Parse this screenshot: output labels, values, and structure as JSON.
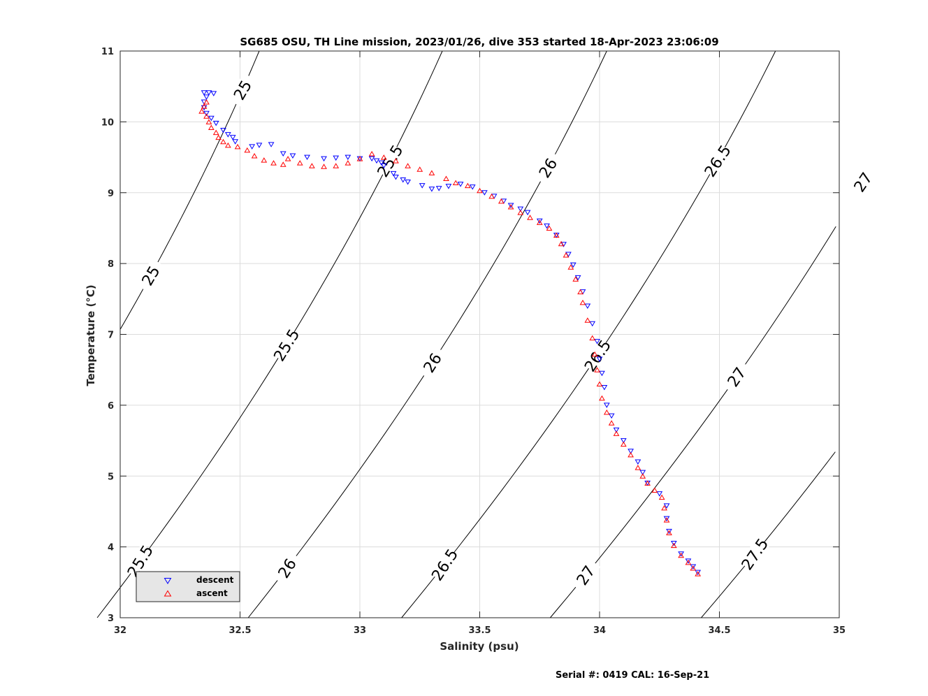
{
  "chart_data": {
    "type": "scatter",
    "title": "SG685 OSU, TH Line mission, 2023/01/26, dive 353 started 18-Apr-2023 23:06:09",
    "xlabel": "Salinity (psu)",
    "ylabel": "Temperature (°C)",
    "xlim": [
      32,
      35
    ],
    "ylim": [
      3,
      11
    ],
    "xticks": [
      "32",
      "32.5",
      "33",
      "33.5",
      "34",
      "34.5",
      "35"
    ],
    "yticks": [
      "3",
      "4",
      "5",
      "6",
      "7",
      "8",
      "9",
      "10",
      "11"
    ],
    "grid": true,
    "legend_position": "bottom-left",
    "series": [
      {
        "name": "descent",
        "color": "#0000ff",
        "marker": "triangle-down",
        "points": [
          [
            32.35,
            10.41
          ],
          [
            32.37,
            10.41
          ],
          [
            32.39,
            10.4
          ],
          [
            32.36,
            10.35
          ],
          [
            32.35,
            10.28
          ],
          [
            32.35,
            10.2
          ],
          [
            32.36,
            10.12
          ],
          [
            32.38,
            10.05
          ],
          [
            32.4,
            9.98
          ],
          [
            32.43,
            9.88
          ],
          [
            32.45,
            9.82
          ],
          [
            32.47,
            9.78
          ],
          [
            32.48,
            9.72
          ],
          [
            32.55,
            9.65
          ],
          [
            32.58,
            9.67
          ],
          [
            32.63,
            9.68
          ],
          [
            32.68,
            9.55
          ],
          [
            32.72,
            9.52
          ],
          [
            32.78,
            9.5
          ],
          [
            32.85,
            9.48
          ],
          [
            32.9,
            9.49
          ],
          [
            32.95,
            9.5
          ],
          [
            33.0,
            9.48
          ],
          [
            33.05,
            9.48
          ],
          [
            33.07,
            9.45
          ],
          [
            33.09,
            9.42
          ],
          [
            33.1,
            9.38
          ],
          [
            33.14,
            9.27
          ],
          [
            33.15,
            9.22
          ],
          [
            33.18,
            9.18
          ],
          [
            33.2,
            9.15
          ],
          [
            33.26,
            9.1
          ],
          [
            33.3,
            9.05
          ],
          [
            33.33,
            9.06
          ],
          [
            33.37,
            9.09
          ],
          [
            33.42,
            9.12
          ],
          [
            33.47,
            9.08
          ],
          [
            33.52,
            9.0
          ],
          [
            33.56,
            8.95
          ],
          [
            33.6,
            8.88
          ],
          [
            33.63,
            8.82
          ],
          [
            33.67,
            8.77
          ],
          [
            33.7,
            8.72
          ],
          [
            33.75,
            8.6
          ],
          [
            33.78,
            8.53
          ],
          [
            33.82,
            8.4
          ],
          [
            33.85,
            8.27
          ],
          [
            33.87,
            8.13
          ],
          [
            33.89,
            7.98
          ],
          [
            33.91,
            7.8
          ],
          [
            33.93,
            7.6
          ],
          [
            33.95,
            7.4
          ],
          [
            33.97,
            7.15
          ],
          [
            33.99,
            6.9
          ],
          [
            34.0,
            6.65
          ],
          [
            34.01,
            6.45
          ],
          [
            34.02,
            6.25
          ],
          [
            34.03,
            6.0
          ],
          [
            34.05,
            5.85
          ],
          [
            34.07,
            5.65
          ],
          [
            34.1,
            5.5
          ],
          [
            34.13,
            5.35
          ],
          [
            34.16,
            5.2
          ],
          [
            34.18,
            5.05
          ],
          [
            34.2,
            4.9
          ],
          [
            34.25,
            4.75
          ],
          [
            34.28,
            4.58
          ],
          [
            34.28,
            4.4
          ],
          [
            34.29,
            4.22
          ],
          [
            34.31,
            4.05
          ],
          [
            34.34,
            3.9
          ],
          [
            34.37,
            3.8
          ],
          [
            34.39,
            3.72
          ],
          [
            34.41,
            3.64
          ]
        ]
      },
      {
        "name": "ascent",
        "color": "#ff0000",
        "marker": "triangle-up",
        "points": [
          [
            32.35,
            10.22
          ],
          [
            32.36,
            10.28
          ],
          [
            32.34,
            10.15
          ],
          [
            32.36,
            10.08
          ],
          [
            32.37,
            10.0
          ],
          [
            32.38,
            9.92
          ],
          [
            32.4,
            9.85
          ],
          [
            32.41,
            9.78
          ],
          [
            32.43,
            9.72
          ],
          [
            32.45,
            9.67
          ],
          [
            32.49,
            9.65
          ],
          [
            32.53,
            9.6
          ],
          [
            32.56,
            9.52
          ],
          [
            32.6,
            9.46
          ],
          [
            32.64,
            9.42
          ],
          [
            32.68,
            9.4
          ],
          [
            32.7,
            9.48
          ],
          [
            32.75,
            9.42
          ],
          [
            32.8,
            9.38
          ],
          [
            32.85,
            9.37
          ],
          [
            32.9,
            9.38
          ],
          [
            32.95,
            9.42
          ],
          [
            33.0,
            9.48
          ],
          [
            33.05,
            9.55
          ],
          [
            33.1,
            9.5
          ],
          [
            33.15,
            9.45
          ],
          [
            33.2,
            9.38
          ],
          [
            33.25,
            9.33
          ],
          [
            33.3,
            9.28
          ],
          [
            33.36,
            9.2
          ],
          [
            33.4,
            9.14
          ],
          [
            33.45,
            9.1
          ],
          [
            33.5,
            9.03
          ],
          [
            33.55,
            8.95
          ],
          [
            33.59,
            8.88
          ],
          [
            33.63,
            8.8
          ],
          [
            33.67,
            8.72
          ],
          [
            33.71,
            8.65
          ],
          [
            33.75,
            8.58
          ],
          [
            33.79,
            8.5
          ],
          [
            33.82,
            8.4
          ],
          [
            33.84,
            8.28
          ],
          [
            33.86,
            8.12
          ],
          [
            33.88,
            7.95
          ],
          [
            33.9,
            7.78
          ],
          [
            33.92,
            7.6
          ],
          [
            33.93,
            7.45
          ],
          [
            33.95,
            7.2
          ],
          [
            33.97,
            6.95
          ],
          [
            33.98,
            6.72
          ],
          [
            33.99,
            6.5
          ],
          [
            34.0,
            6.3
          ],
          [
            34.01,
            6.1
          ],
          [
            34.03,
            5.9
          ],
          [
            34.05,
            5.75
          ],
          [
            34.07,
            5.6
          ],
          [
            34.1,
            5.45
          ],
          [
            34.13,
            5.3
          ],
          [
            34.16,
            5.12
          ],
          [
            34.18,
            5.0
          ],
          [
            34.2,
            4.9
          ],
          [
            34.23,
            4.8
          ],
          [
            34.26,
            4.7
          ],
          [
            34.27,
            4.55
          ],
          [
            34.28,
            4.38
          ],
          [
            34.29,
            4.2
          ],
          [
            34.31,
            4.02
          ],
          [
            34.34,
            3.88
          ],
          [
            34.37,
            3.78
          ],
          [
            34.39,
            3.7
          ],
          [
            34.41,
            3.62
          ]
        ]
      }
    ],
    "contours": [
      {
        "value": "25",
        "labels": [
          "25",
          "25"
        ]
      },
      {
        "value": "25.5",
        "labels": [
          "25.5",
          "25.5",
          "25.5"
        ]
      },
      {
        "value": "26",
        "labels": [
          "26",
          "26",
          "26"
        ]
      },
      {
        "value": "26.5",
        "labels": [
          "26.5",
          "26.5",
          "26.5"
        ]
      },
      {
        "value": "27",
        "labels": [
          "27",
          "27",
          "27"
        ]
      },
      {
        "value": "27.5",
        "labels": [
          "27.5"
        ]
      }
    ]
  },
  "footer": {
    "serial_text": "Serial #: 0419  CAL: 16-Sep-21"
  }
}
